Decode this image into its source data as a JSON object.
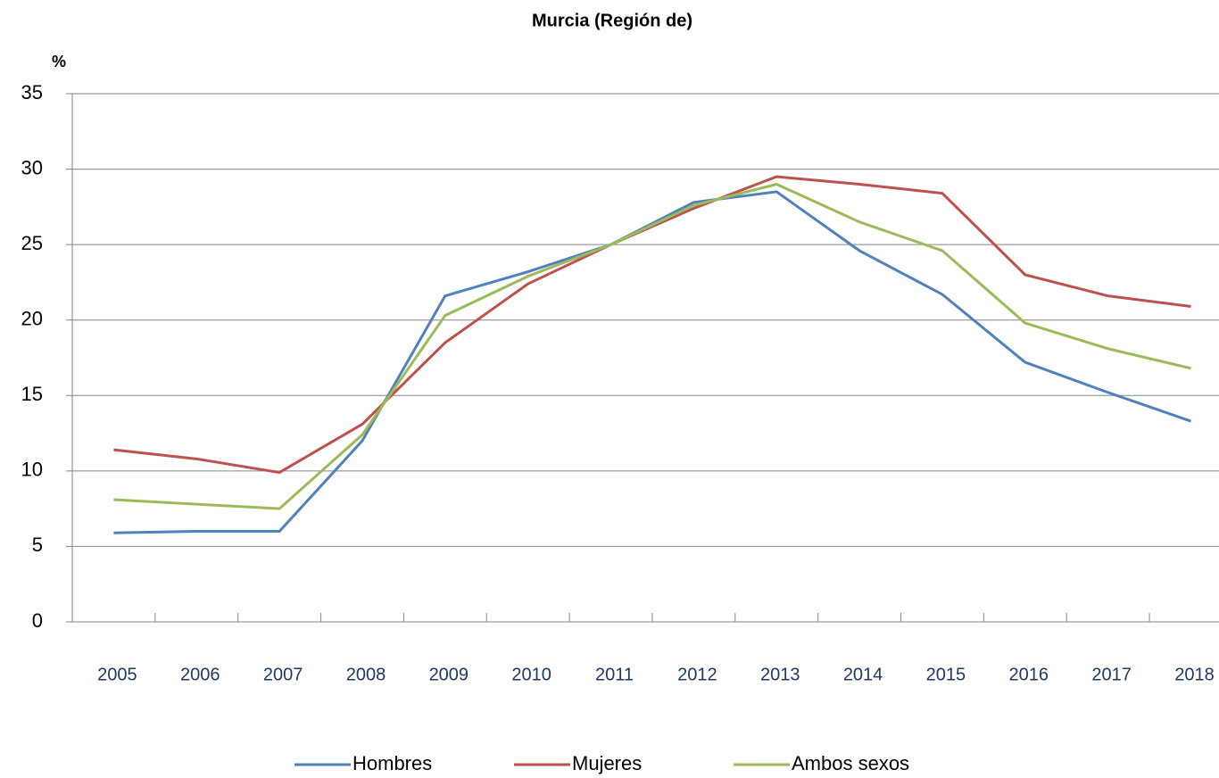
{
  "chart_data": {
    "type": "line",
    "title": "Murcia (Región de)",
    "y_label": "%",
    "categories": [
      "2005",
      "2006",
      "2007",
      "2008",
      "2009",
      "2010",
      "2011",
      "2012",
      "2013",
      "2014",
      "2015",
      "2016",
      "2017",
      "2018"
    ],
    "series": [
      {
        "name": "Hombres",
        "color": "#4f81bd",
        "values": [
          5.9,
          6.0,
          6.0,
          12.0,
          21.6,
          23.2,
          25.0,
          27.8,
          28.5,
          24.6,
          21.7,
          17.2,
          15.2,
          13.3
        ]
      },
      {
        "name": "Mujeres",
        "color": "#c0504d",
        "values": [
          11.4,
          10.8,
          9.9,
          13.1,
          18.5,
          22.4,
          25.0,
          27.4,
          29.5,
          29.0,
          28.4,
          23.0,
          21.6,
          20.9
        ]
      },
      {
        "name": "Ambos sexos",
        "color": "#9bbb59",
        "values": [
          8.1,
          7.8,
          7.5,
          12.4,
          20.3,
          22.9,
          25.0,
          27.6,
          29.0,
          26.5,
          24.6,
          19.8,
          18.1,
          16.8
        ]
      }
    ],
    "ylim": [
      0,
      35
    ],
    "yticks": [
      0,
      5,
      10,
      15,
      20,
      25,
      30,
      35
    ],
    "grid": true
  }
}
